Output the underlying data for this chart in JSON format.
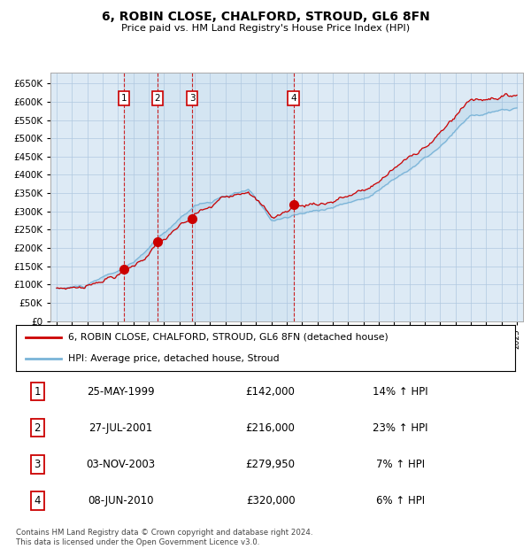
{
  "title": "6, ROBIN CLOSE, CHALFORD, STROUD, GL6 8FN",
  "subtitle": "Price paid vs. HM Land Registry's House Price Index (HPI)",
  "hpi_color": "#7ab4d8",
  "price_color": "#cc0000",
  "background_color": "#ffffff",
  "chart_bg": "#ddeaf5",
  "grid_color": "#b0c8e0",
  "ylim": [
    0,
    680000
  ],
  "yticks": [
    0,
    50000,
    100000,
    150000,
    200000,
    250000,
    300000,
    350000,
    400000,
    450000,
    500000,
    550000,
    600000,
    650000
  ],
  "year_start": 1995,
  "year_end": 2025,
  "sale_dates_year": [
    1999.39,
    2001.57,
    2003.84,
    2010.44
  ],
  "sale_prices": [
    142000,
    216000,
    279950,
    320000
  ],
  "sale_labels": [
    "1",
    "2",
    "3",
    "4"
  ],
  "legend_line1": "6, ROBIN CLOSE, CHALFORD, STROUD, GL6 8FN (detached house)",
  "legend_line2": "HPI: Average price, detached house, Stroud",
  "table_rows": [
    [
      "1",
      "25-MAY-1999",
      "£142,000",
      "14% ↑ HPI"
    ],
    [
      "2",
      "27-JUL-2001",
      "£216,000",
      "23% ↑ HPI"
    ],
    [
      "3",
      "03-NOV-2003",
      "£279,950",
      "7% ↑ HPI"
    ],
    [
      "4",
      "08-JUN-2010",
      "£320,000",
      "6% ↑ HPI"
    ]
  ],
  "footer": "Contains HM Land Registry data © Crown copyright and database right 2024.\nThis data is licensed under the Open Government Licence v3.0."
}
